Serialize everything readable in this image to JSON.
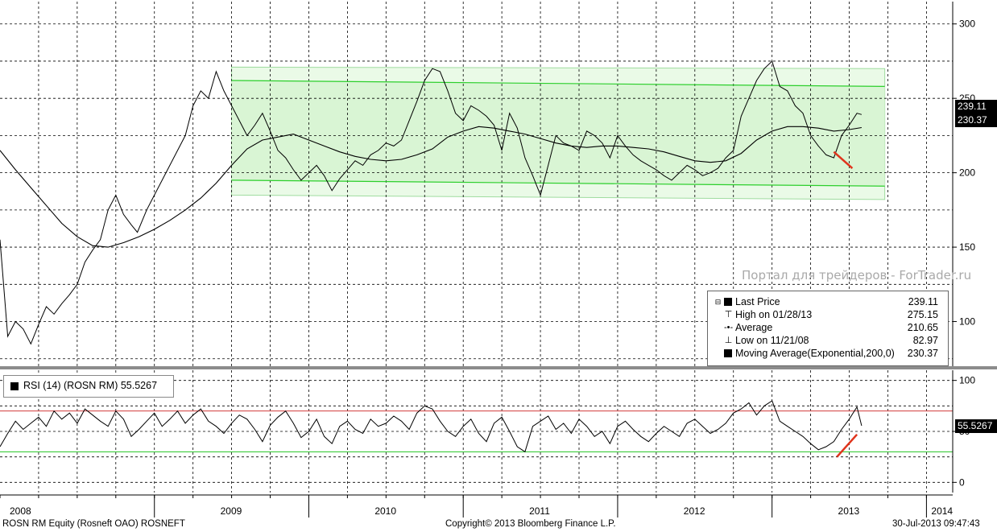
{
  "chart_data": [
    {
      "type": "line",
      "panel": "price",
      "y_ticks": [
        100,
        150,
        200,
        250,
        300
      ],
      "ylim": [
        70,
        315
      ],
      "x_axis_labels": [
        "2008",
        "2009",
        "2010",
        "2011",
        "2012",
        "2013",
        "2014"
      ],
      "series": [
        {
          "name": "Last Price",
          "color": "#000000",
          "x": [
            2008.0,
            2008.05,
            2008.1,
            2008.15,
            2008.2,
            2008.25,
            2008.3,
            2008.35,
            2008.4,
            2008.45,
            2008.5,
            2008.55,
            2008.6,
            2008.65,
            2008.7,
            2008.75,
            2008.8,
            2008.85,
            2008.89,
            2008.95,
            2009.0,
            2009.05,
            2009.1,
            2009.15,
            2009.2,
            2009.25,
            2009.3,
            2009.35,
            2009.4,
            2009.45,
            2009.5,
            2009.55,
            2009.6,
            2009.65,
            2009.7,
            2009.75,
            2009.8,
            2009.85,
            2009.9,
            2009.95,
            2010.0,
            2010.05,
            2010.1,
            2010.15,
            2010.2,
            2010.25,
            2010.3,
            2010.35,
            2010.4,
            2010.45,
            2010.5,
            2010.55,
            2010.6,
            2010.65,
            2010.7,
            2010.75,
            2010.8,
            2010.85,
            2010.9,
            2010.95,
            2011.0,
            2011.05,
            2011.1,
            2011.15,
            2011.2,
            2011.25,
            2011.3,
            2011.35,
            2011.4,
            2011.45,
            2011.5,
            2011.55,
            2011.6,
            2011.65,
            2011.7,
            2011.75,
            2011.8,
            2011.85,
            2011.9,
            2011.95,
            2012.0,
            2012.05,
            2012.1,
            2012.15,
            2012.2,
            2012.25,
            2012.3,
            2012.35,
            2012.4,
            2012.45,
            2012.5,
            2012.55,
            2012.6,
            2012.65,
            2012.7,
            2012.75,
            2012.8,
            2012.85,
            2012.9,
            2012.95,
            2013.0,
            2013.05,
            2013.1,
            2013.15,
            2013.2,
            2013.25,
            2013.3,
            2013.35,
            2013.4,
            2013.45,
            2013.5,
            2013.55,
            2013.58
          ],
          "values": [
            155,
            90,
            100,
            95,
            85,
            98,
            110,
            105,
            112,
            118,
            125,
            140,
            148,
            155,
            175,
            185,
            172,
            165,
            160,
            175,
            185,
            195,
            205,
            215,
            225,
            245,
            255,
            250,
            268,
            255,
            245,
            235,
            225,
            232,
            240,
            228,
            215,
            210,
            202,
            195,
            200,
            205,
            198,
            188,
            196,
            202,
            208,
            205,
            212,
            215,
            220,
            218,
            222,
            235,
            248,
            262,
            270,
            268,
            255,
            240,
            235,
            245,
            242,
            238,
            232,
            215,
            240,
            230,
            210,
            198,
            185,
            205,
            225,
            220,
            218,
            215,
            228,
            225,
            220,
            210,
            225,
            218,
            212,
            208,
            205,
            202,
            198,
            195,
            200,
            205,
            202,
            198,
            200,
            203,
            210,
            215,
            238,
            250,
            262,
            270,
            275,
            258,
            255,
            245,
            240,
            225,
            218,
            212,
            210,
            225,
            232,
            240,
            239.11
          ]
        },
        {
          "name": "Moving Average(Exponential,200,0)",
          "color": "#000000",
          "x": [
            2008.0,
            2008.1,
            2008.2,
            2008.3,
            2008.4,
            2008.5,
            2008.6,
            2008.7,
            2008.8,
            2008.9,
            2009.0,
            2009.1,
            2009.2,
            2009.3,
            2009.4,
            2009.5,
            2009.6,
            2009.7,
            2009.8,
            2009.9,
            2010.0,
            2010.1,
            2010.2,
            2010.3,
            2010.4,
            2010.5,
            2010.6,
            2010.7,
            2010.8,
            2010.9,
            2011.0,
            2011.1,
            2011.2,
            2011.3,
            2011.4,
            2011.5,
            2011.6,
            2011.7,
            2011.8,
            2011.9,
            2012.0,
            2012.1,
            2012.2,
            2012.3,
            2012.4,
            2012.5,
            2012.6,
            2012.7,
            2012.8,
            2012.9,
            2013.0,
            2013.1,
            2013.2,
            2013.3,
            2013.4,
            2013.5,
            2013.58
          ],
          "values": [
            215,
            202,
            190,
            178,
            166,
            157,
            151,
            150,
            153,
            157,
            162,
            168,
            175,
            183,
            193,
            205,
            216,
            222,
            224,
            226,
            222,
            218,
            214,
            211,
            209,
            208,
            209,
            212,
            216,
            224,
            228,
            231,
            230,
            228,
            226,
            223,
            220,
            218,
            217,
            218,
            218,
            217,
            216,
            214,
            211,
            208,
            207,
            208,
            213,
            222,
            228,
            231,
            231,
            230,
            228,
            229,
            230.37
          ]
        }
      ],
      "channel": {
        "outer_upper": [
          2009.5,
          271,
          2013.73,
          270
        ],
        "inner_upper": [
          2009.5,
          262,
          2013.73,
          258
        ],
        "inner_lower": [
          2009.5,
          195,
          2013.73,
          191
        ],
        "outer_lower": [
          2009.5,
          185,
          2013.73,
          182
        ]
      },
      "divergence_line": [
        2013.4,
        214,
        2013.52,
        203
      ],
      "legend": [
        {
          "symbol": "square",
          "label": "Last Price",
          "value": "239.11"
        },
        {
          "symbol": "up-tick",
          "label": "High on 01/28/13",
          "value": "275.15"
        },
        {
          "symbol": "dash-dot",
          "label": "Average",
          "value": "210.65"
        },
        {
          "symbol": "down-tick",
          "label": "Low on 11/21/08",
          "value": "82.97"
        },
        {
          "symbol": "square",
          "label": "Moving Average(Exponential,200,0)",
          "value": "230.37"
        }
      ],
      "last_price_tag": "239.11",
      "ma_tag": "230.37",
      "grid": true
    },
    {
      "type": "line",
      "panel": "rsi",
      "title": "RSI (14) (ROSN RM) 55.5267",
      "y_ticks": [
        0,
        50,
        100
      ],
      "ylim": [
        -10,
        110
      ],
      "upper_level": 70,
      "lower_level": 30,
      "series": [
        {
          "name": "RSI (14) (ROSN RM)",
          "color": "#000000",
          "x": [
            2008.0,
            2008.05,
            2008.1,
            2008.15,
            2008.2,
            2008.25,
            2008.3,
            2008.35,
            2008.4,
            2008.45,
            2008.5,
            2008.55,
            2008.6,
            2008.65,
            2008.7,
            2008.75,
            2008.8,
            2008.85,
            2008.9,
            2008.95,
            2009.0,
            2009.05,
            2009.1,
            2009.15,
            2009.2,
            2009.25,
            2009.3,
            2009.35,
            2009.4,
            2009.45,
            2009.5,
            2009.55,
            2009.6,
            2009.65,
            2009.7,
            2009.75,
            2009.8,
            2009.85,
            2009.9,
            2009.95,
            2010.0,
            2010.05,
            2010.1,
            2010.15,
            2010.2,
            2010.25,
            2010.3,
            2010.35,
            2010.4,
            2010.45,
            2010.5,
            2010.55,
            2010.6,
            2010.65,
            2010.7,
            2010.75,
            2010.8,
            2010.85,
            2010.9,
            2010.95,
            2011.0,
            2011.05,
            2011.1,
            2011.15,
            2011.2,
            2011.25,
            2011.3,
            2011.35,
            2011.4,
            2011.45,
            2011.5,
            2011.55,
            2011.6,
            2011.65,
            2011.7,
            2011.75,
            2011.8,
            2011.85,
            2011.9,
            2011.95,
            2012.0,
            2012.05,
            2012.1,
            2012.15,
            2012.2,
            2012.25,
            2012.3,
            2012.35,
            2012.4,
            2012.45,
            2012.5,
            2012.55,
            2012.6,
            2012.65,
            2012.7,
            2012.75,
            2012.8,
            2012.85,
            2012.9,
            2012.95,
            2013.0,
            2013.05,
            2013.1,
            2013.15,
            2013.2,
            2013.25,
            2013.3,
            2013.35,
            2013.4,
            2013.45,
            2013.5,
            2013.55,
            2013.58
          ],
          "values": [
            35,
            48,
            60,
            52,
            58,
            64,
            55,
            70,
            62,
            68,
            58,
            72,
            66,
            60,
            55,
            70,
            62,
            45,
            52,
            60,
            68,
            55,
            62,
            70,
            58,
            66,
            72,
            60,
            55,
            48,
            58,
            66,
            62,
            52,
            40,
            56,
            64,
            70,
            58,
            44,
            50,
            62,
            45,
            38,
            55,
            60,
            52,
            48,
            62,
            55,
            58,
            65,
            60,
            52,
            68,
            75,
            72,
            60,
            50,
            45,
            55,
            62,
            48,
            40,
            58,
            64,
            50,
            35,
            30,
            55,
            60,
            65,
            52,
            58,
            48,
            62,
            55,
            45,
            50,
            38,
            55,
            60,
            52,
            45,
            40,
            48,
            55,
            50,
            45,
            58,
            62,
            55,
            48,
            52,
            58,
            68,
            72,
            78,
            66,
            75,
            80,
            60,
            55,
            50,
            45,
            38,
            32,
            35,
            40,
            52,
            62,
            74,
            55.5267
          ]
        }
      ],
      "divergence_line": [
        2013.42,
        25,
        2013.55,
        47
      ],
      "rsi_tag": "55.5267",
      "grid": true
    }
  ],
  "watermark": "Портал для трейдеров - ForTrader.ru",
  "footer": {
    "left": "ROSN RM Equity (Rosneft OAO) ROSNEFT",
    "center": "Copyright© 2013 Bloomberg Finance L.P.",
    "right": "30-Jul-2013 09:47:43"
  },
  "colors": {
    "channel_fill": "#d9f5d4",
    "channel_line": "#2ccf2c",
    "channel_outer_line": "#9fdc9f",
    "divergence": "#e0341c",
    "rsi_upper": "#d23b3b",
    "rsi_lower": "#22c522",
    "grid": "#000000",
    "separator": "#8c8c8c"
  }
}
